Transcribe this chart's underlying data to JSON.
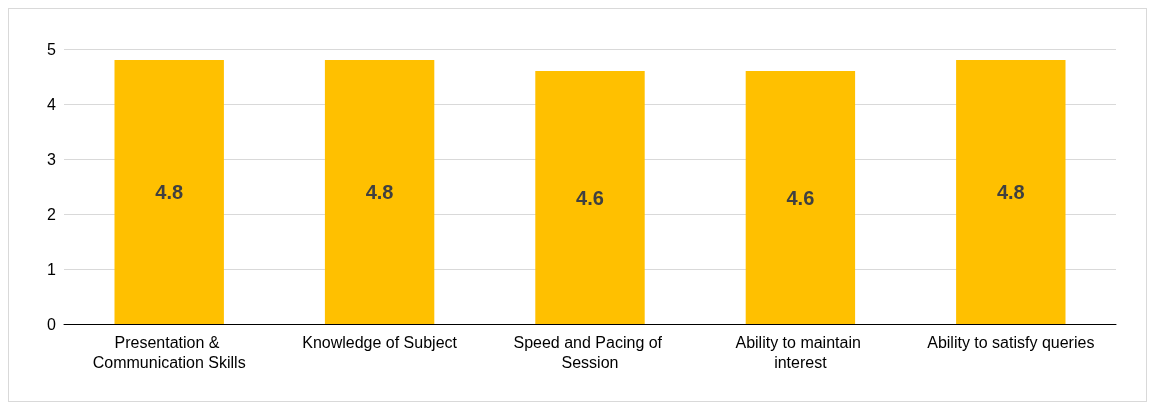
{
  "chart_data": {
    "type": "bar",
    "categories": [
      "Presentation & Communication Skills",
      "Knowledge of Subject",
      "Speed and Pacing of Session",
      "Ability to maintain interest",
      "Ability to satisfy queries"
    ],
    "values": [
      4.8,
      4.8,
      4.6,
      4.6,
      4.8
    ],
    "color": "#ffc000",
    "ylim": [
      0,
      5
    ],
    "yticks": [
      0,
      1,
      2,
      3,
      4,
      5
    ],
    "grid": "y",
    "data_labels": true
  }
}
